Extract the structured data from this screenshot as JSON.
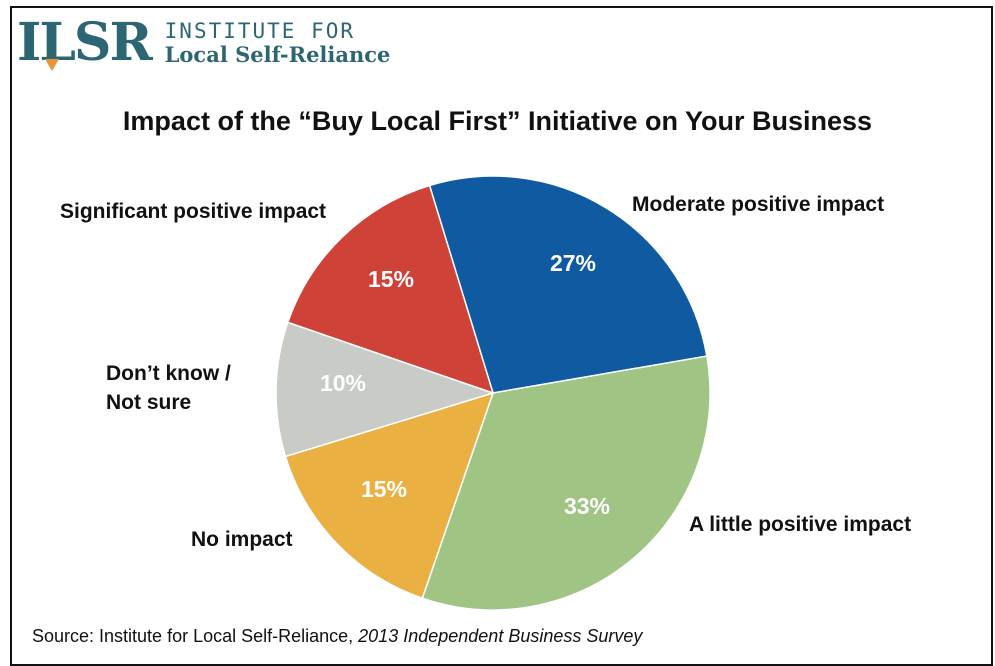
{
  "logo": {
    "mark": "ILSR",
    "line1": "INSTITUTE FOR",
    "line2": "Local Self-Reliance",
    "color": "#2d6673",
    "accent": "#e8953a"
  },
  "source": {
    "prefix": "Source: Institute for Local Self-Reliance, ",
    "publication": "2013 Independent Business Survey"
  },
  "chart_data": {
    "type": "pie",
    "title": "Impact of the “Buy Local First” Initiative on Your Business",
    "slices": [
      {
        "label": "Moderate positive impact",
        "value": 27,
        "display": "27%",
        "color": "#0f5aa0"
      },
      {
        "label": "A little positive impact",
        "value": 33,
        "display": "33%",
        "color": "#9fc483"
      },
      {
        "label": "No impact",
        "value": 15,
        "display": "15%",
        "color": "#ebb042"
      },
      {
        "label": "Don’t know / Not sure",
        "value": 10,
        "display": "10%",
        "color": "#c8cbc6"
      },
      {
        "label": "Significant positive impact",
        "value": 15,
        "display": "15%",
        "color": "#cf4237"
      }
    ]
  }
}
